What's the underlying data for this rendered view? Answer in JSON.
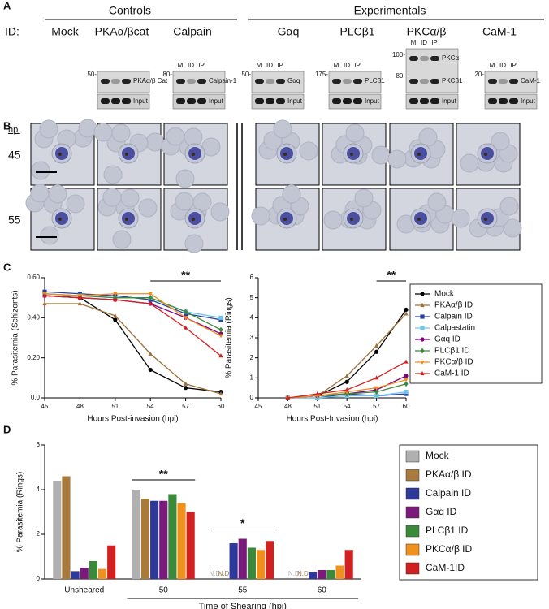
{
  "panel_labels": [
    "A",
    "B",
    "C",
    "D"
  ],
  "panel_a": {
    "controls": "Controls",
    "experimentals": "Experimentals",
    "id_label": "ID:",
    "conditions": [
      "Mock",
      "PKAα/βcat",
      "Calpain",
      "Gαq",
      "PLCβ1",
      "PKCα/β",
      "CaM-1"
    ],
    "blots": [
      {
        "markers": [
          "50-"
        ],
        "targets": [
          "PKAα/β Cat"
        ],
        "input": "Input"
      },
      {
        "markers": [
          "80-"
        ],
        "lanes": [
          "M",
          "ID",
          "IP"
        ],
        "targets": [
          "Calpain-1"
        ],
        "input": "Input"
      },
      {
        "markers": [
          "50-"
        ],
        "lanes": [
          "M",
          "ID",
          "IP"
        ],
        "targets": [
          "Gαq"
        ],
        "input": "Input"
      },
      {
        "markers": [
          "175-"
        ],
        "lanes": [
          "M",
          "ID",
          "IP"
        ],
        "targets": [
          "PLCβ1"
        ],
        "input": "Input"
      },
      {
        "markers": [
          "100-",
          "80-"
        ],
        "lanes": [
          "M",
          "ID",
          "IP"
        ],
        "targets": [
          "PKCα",
          "PKCβ1"
        ],
        "input": "Input"
      },
      {
        "markers": [
          "20-"
        ],
        "lanes": [
          "M",
          "ID",
          "IP"
        ],
        "targets": [
          "CaM-1"
        ],
        "input": "Input"
      }
    ]
  },
  "panel_b": {
    "hpi": "hpi",
    "rows": [
      "45",
      "55"
    ]
  },
  "chart_data": [
    {
      "type": "line",
      "y_label": "% Parasitemia (Schizonts)",
      "x_label": "Hours Post-invasion (hpi)",
      "xlim": [
        45,
        60
      ],
      "xticks": [
        45,
        48,
        51,
        54,
        57,
        60
      ],
      "ylim": [
        0,
        0.6
      ],
      "yticks": [
        {
          "value": 0,
          "label": "0.0"
        },
        {
          "value": 0.2,
          "label": "0.20"
        },
        {
          "value": 0.4,
          "label": "0.40"
        },
        {
          "value": 0.6,
          "label": "0.60"
        }
      ],
      "annotations": [
        {
          "text": "**",
          "x": [
            54,
            60
          ]
        }
      ],
      "x": [
        45,
        48,
        51,
        54,
        57,
        60
      ],
      "series": [
        {
          "color": "#000000",
          "marker": "circle",
          "values": [
            0.51,
            0.5,
            0.39,
            0.14,
            0.05,
            0.03
          ]
        },
        {
          "color": "#a0703a",
          "marker": "triangle",
          "values": [
            0.47,
            0.47,
            0.41,
            0.22,
            0.07,
            0.02
          ]
        },
        {
          "color": "#2a3f9e",
          "marker": "square",
          "values": [
            0.53,
            0.52,
            0.51,
            0.49,
            0.42,
            0.39
          ]
        },
        {
          "color": "#6ec6e6",
          "marker": "square",
          "values": [
            0.52,
            0.51,
            0.5,
            0.5,
            0.43,
            0.4
          ]
        },
        {
          "color": "#800080",
          "marker": "circle",
          "values": [
            0.51,
            0.5,
            0.49,
            0.47,
            0.4,
            0.32
          ]
        },
        {
          "color": "#3a8a3a",
          "marker": "diamond",
          "values": [
            0.52,
            0.51,
            0.5,
            0.5,
            0.43,
            0.34
          ]
        },
        {
          "color": "#f08c1e",
          "marker": "triangle-down",
          "values": [
            0.52,
            0.51,
            0.52,
            0.52,
            0.4,
            0.31
          ]
        },
        {
          "color": "#d62020",
          "marker": "triangle",
          "values": [
            0.51,
            0.5,
            0.49,
            0.47,
            0.35,
            0.21
          ]
        }
      ]
    },
    {
      "type": "line",
      "y_label": "% Parasitemia (Rings)",
      "x_label": "Hours Post-Invasion (hpi)",
      "xlim": [
        45,
        60
      ],
      "xticks": [
        45,
        48,
        51,
        54,
        57,
        60
      ],
      "ylim": [
        0,
        6
      ],
      "yticks": [
        0,
        1,
        2,
        3,
        4,
        5,
        6
      ],
      "annotations": [
        {
          "text": "**",
          "x": [
            57,
            60
          ]
        }
      ],
      "legend": "right",
      "x": [
        48,
        51,
        54,
        57,
        60
      ],
      "series": [
        {
          "name": "Mock",
          "color": "#000000",
          "marker": "circle",
          "values": [
            0,
            0.1,
            0.8,
            2.3,
            4.4
          ]
        },
        {
          "name": "PKAα/β ID",
          "color": "#a0703a",
          "marker": "triangle",
          "values": [
            0,
            0.1,
            1.1,
            2.6,
            4.2
          ]
        },
        {
          "name": "Calpain ID",
          "color": "#2a3f9e",
          "marker": "square",
          "values": [
            0,
            0,
            0.2,
            0.1,
            0.2
          ]
        },
        {
          "name": "Calpastatin",
          "color": "#6ec6e6",
          "marker": "square",
          "values": [
            0,
            0,
            0.1,
            0.1,
            0.3
          ]
        },
        {
          "name": "Gαq ID",
          "color": "#800080",
          "marker": "circle",
          "values": [
            0,
            0.1,
            0.2,
            0.4,
            1.1
          ]
        },
        {
          "name": "PLCβ1 ID",
          "color": "#3a8a3a",
          "marker": "diamond",
          "values": [
            0,
            0.1,
            0.2,
            0.3,
            0.7
          ]
        },
        {
          "name": "PKCα/β ID",
          "color": "#f08c1e",
          "marker": "triangle-down",
          "values": [
            0,
            0.1,
            0.3,
            0.5,
            0.9
          ]
        },
        {
          "name": "CaM-1 ID",
          "color": "#d62020",
          "marker": "triangle",
          "values": [
            0,
            0.2,
            0.4,
            1.0,
            1.8
          ]
        }
      ]
    },
    {
      "type": "bar",
      "y_label": "% Parasitemia (Rings)",
      "x_label": "Time of Shearing (hpi)",
      "ylim": [
        0,
        6
      ],
      "yticks": [
        0,
        2,
        4,
        6
      ],
      "legend": "right",
      "categories": [
        "Unsheared",
        "50",
        "55",
        "60"
      ],
      "group_annotations": [
        null,
        "**",
        "*",
        null
      ],
      "series": [
        {
          "name": "Mock",
          "color": "#b0b0b0",
          "values": [
            4.4,
            4.0,
            null,
            null
          ],
          "value_labels": [
            null,
            null,
            "N.D.",
            "N.D."
          ]
        },
        {
          "name": "PKAα/β ID",
          "color": "#a87a3c",
          "values": [
            4.6,
            3.6,
            null,
            null
          ],
          "value_labels": [
            null,
            null,
            "N.D.",
            "N.D."
          ]
        },
        {
          "name": "Calpain ID",
          "color": "#2e3a9a",
          "values": [
            0.35,
            3.5,
            1.6,
            0.3
          ]
        },
        {
          "name": "Gαq ID",
          "color": "#7a1a7a",
          "values": [
            0.5,
            3.5,
            1.8,
            0.4
          ]
        },
        {
          "name": "PLCβ1 ID",
          "color": "#3a8a3a",
          "values": [
            0.8,
            3.8,
            1.4,
            0.4
          ]
        },
        {
          "name": "PKCα/β ID",
          "color": "#f0901e",
          "values": [
            0.45,
            3.4,
            1.3,
            0.6
          ]
        },
        {
          "name": "CaM-1ID",
          "color": "#d02020",
          "values": [
            1.5,
            3.0,
            1.7,
            1.3
          ]
        }
      ]
    }
  ]
}
